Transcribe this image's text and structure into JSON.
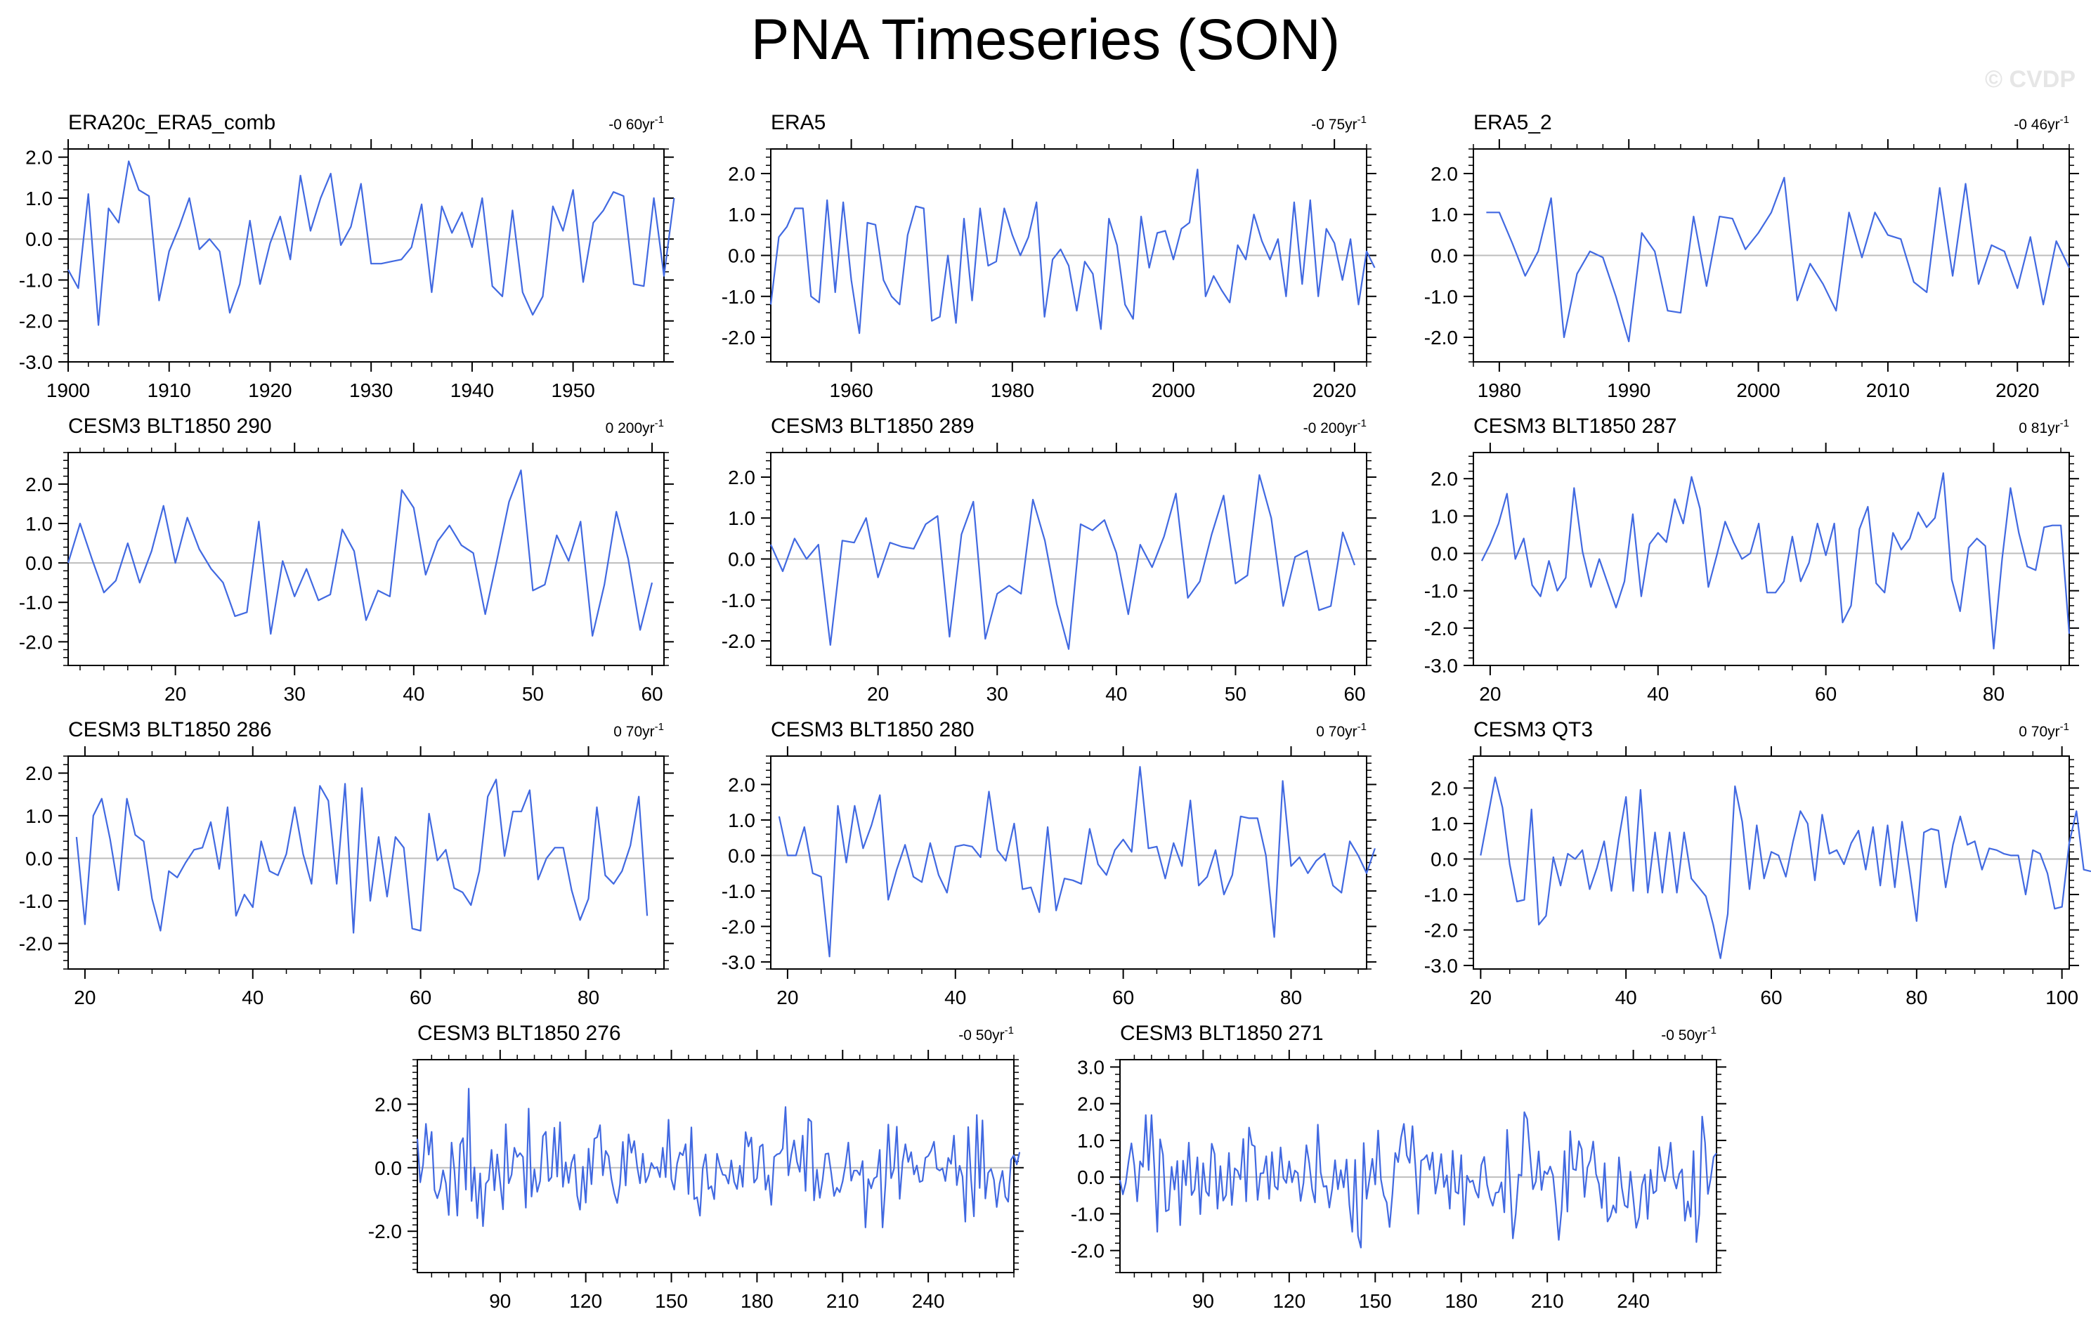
{
  "title": "PNA Timeseries (SON)",
  "watermark": "© CVDP",
  "chart_data": [
    {
      "type": "line",
      "title": "ERA20c_ERA5_comb",
      "trend": "-0 60yr",
      "trend_unit": "-1",
      "xlim": [
        1900,
        1959
      ],
      "ylim": [
        -3,
        2.2
      ],
      "yticks": [
        2,
        1,
        0,
        -1,
        -2,
        -3
      ],
      "xticks": [
        1900,
        1910,
        1920,
        1930,
        1940,
        1950
      ],
      "x0": 1900,
      "line_color": "#4169e1",
      "values": [
        -0.75,
        -1.2,
        1.1,
        -2.1,
        0.75,
        0.4,
        1.9,
        1.2,
        1.05,
        -1.5,
        -0.3,
        0.3,
        1.0,
        -0.25,
        0.0,
        -0.3,
        -1.8,
        -1.1,
        0.45,
        -1.1,
        -0.1,
        0.55,
        -0.5,
        1.55,
        0.2,
        1.0,
        1.6,
        -0.15,
        0.3,
        1.35,
        -0.6,
        -0.6,
        -0.55,
        -0.5,
        -0.2,
        0.85,
        -1.3,
        0.8,
        0.15,
        0.65,
        -0.2,
        1.0,
        -1.15,
        -1.4,
        0.7,
        -1.3,
        -1.85,
        -1.4,
        0.8,
        0.2,
        1.2,
        -1.05,
        0.4,
        0.7,
        1.15,
        1.05,
        -1.1,
        -1.15,
        1.0,
        -0.9,
        1.0
      ]
    },
    {
      "type": "line",
      "title": "ERA5",
      "trend": "-0 75yr",
      "trend_unit": "-1",
      "xlim": [
        1950,
        2024
      ],
      "ylim": [
        -2.6,
        2.6
      ],
      "yticks": [
        2,
        1,
        0,
        -1,
        -2
      ],
      "xticks": [
        1960,
        1980,
        2000,
        2020
      ],
      "x0": 1950,
      "line_color": "#4169e1",
      "values": [
        -1.2,
        0.45,
        0.7,
        1.15,
        1.15,
        -1.0,
        -1.15,
        1.35,
        -0.9,
        1.3,
        -0.6,
        -1.9,
        0.8,
        0.75,
        -0.6,
        -1.0,
        -1.2,
        0.5,
        1.2,
        1.15,
        -1.6,
        -1.5,
        0.0,
        -1.65,
        0.9,
        -1.1,
        1.15,
        -0.25,
        -0.15,
        1.15,
        0.5,
        0.0,
        0.45,
        1.3,
        -1.5,
        -0.1,
        0.15,
        -0.25,
        -1.35,
        -0.15,
        -0.45,
        -1.8,
        0.9,
        0.25,
        -1.2,
        -1.55,
        0.95,
        -0.3,
        0.55,
        0.6,
        -0.1,
        0.65,
        0.8,
        2.1,
        -1.0,
        -0.5,
        -0.85,
        -1.15,
        0.25,
        -0.1,
        1.0,
        0.35,
        -0.1,
        0.4,
        -1.0,
        1.3,
        -0.7,
        1.35,
        -1.0,
        0.65,
        0.3,
        -0.6,
        0.4,
        -1.2,
        0.1,
        -0.3
      ]
    },
    {
      "type": "line",
      "title": "ERA5_2",
      "trend": "-0 46yr",
      "trend_unit": "-1",
      "xlim": [
        1978,
        2024
      ],
      "ylim": [
        -2.6,
        2.6
      ],
      "yticks": [
        2,
        1,
        0,
        -1,
        -2
      ],
      "xticks": [
        1980,
        1990,
        2000,
        2010,
        2020
      ],
      "x0": 1979,
      "line_color": "#4169e1",
      "values": [
        1.05,
        1.05,
        0.3,
        -0.5,
        0.1,
        1.4,
        -2.0,
        -0.45,
        0.1,
        -0.05,
        -1.0,
        -2.1,
        0.55,
        0.1,
        -1.35,
        -1.4,
        0.95,
        -0.75,
        0.95,
        0.9,
        0.15,
        0.55,
        1.05,
        1.9,
        -1.1,
        -0.2,
        -0.7,
        -1.35,
        1.05,
        -0.05,
        1.05,
        0.5,
        0.4,
        -0.65,
        -0.9,
        1.65,
        -0.5,
        1.75,
        -0.7,
        0.25,
        0.1,
        -0.8,
        0.45,
        -1.2,
        0.35,
        -0.3
      ]
    },
    {
      "type": "line",
      "title": "CESM3 BLT1850 290",
      "trend": "0 200yr",
      "trend_unit": "-1",
      "xlim": [
        11,
        61
      ],
      "ylim": [
        -2.6,
        2.8
      ],
      "yticks": [
        2,
        1,
        0,
        -1,
        -2
      ],
      "xticks": [
        20,
        30,
        40,
        50,
        60
      ],
      "x0": 11,
      "line_color": "#4169e1",
      "values": [
        0.0,
        1.0,
        0.1,
        -0.75,
        -0.45,
        0.5,
        -0.5,
        0.3,
        1.45,
        0.0,
        1.15,
        0.35,
        -0.15,
        -0.5,
        -1.35,
        -1.25,
        1.05,
        -1.8,
        0.05,
        -0.85,
        -0.15,
        -0.95,
        -0.8,
        0.85,
        0.3,
        -1.45,
        -0.7,
        -0.85,
        1.85,
        1.4,
        -0.3,
        0.55,
        0.95,
        0.45,
        0.25,
        -1.3,
        0.1,
        1.55,
        2.35,
        -0.7,
        -0.55,
        0.7,
        0.05,
        1.05,
        -1.85,
        -0.55,
        1.3,
        0.1,
        -1.7,
        -0.5
      ]
    },
    {
      "type": "line",
      "title": "CESM3 BLT1850 289",
      "trend": "-0 200yr",
      "trend_unit": "-1",
      "xlim": [
        11,
        61
      ],
      "ylim": [
        -2.6,
        2.6
      ],
      "yticks": [
        2,
        1,
        0,
        -1,
        -2
      ],
      "xticks": [
        20,
        30,
        40,
        50,
        60
      ],
      "x0": 11,
      "line_color": "#4169e1",
      "values": [
        0.35,
        -0.3,
        0.5,
        0.0,
        0.35,
        -2.1,
        0.45,
        0.4,
        1.0,
        -0.45,
        0.4,
        0.3,
        0.25,
        0.85,
        1.05,
        -1.9,
        0.6,
        1.4,
        -1.95,
        -0.85,
        -0.65,
        -0.85,
        1.45,
        0.45,
        -1.1,
        -2.2,
        0.85,
        0.7,
        0.95,
        0.15,
        -1.35,
        0.35,
        -0.2,
        0.55,
        1.6,
        -0.95,
        -0.55,
        0.6,
        1.55,
        -0.6,
        -0.4,
        2.05,
        1.0,
        -1.15,
        0.05,
        0.2,
        -1.25,
        -1.15,
        0.65,
        -0.15
      ]
    },
    {
      "type": "line",
      "title": "CESM3 BLT1850 287",
      "trend": "0 81yr",
      "trend_unit": "-1",
      "xlim": [
        18,
        89
      ],
      "ylim": [
        -3,
        2.7
      ],
      "yticks": [
        2,
        1,
        0,
        -1,
        -2,
        -3
      ],
      "xticks": [
        20,
        40,
        60,
        80
      ],
      "x0": 19,
      "line_color": "#4169e1",
      "values": [
        -0.2,
        0.25,
        0.8,
        1.6,
        -0.15,
        0.4,
        -0.85,
        -1.15,
        -0.2,
        -1.0,
        -0.65,
        1.75,
        0.05,
        -0.9,
        -0.15,
        -0.8,
        -1.45,
        -0.75,
        1.05,
        -1.15,
        0.25,
        0.55,
        0.3,
        1.45,
        0.8,
        2.05,
        1.2,
        -0.9,
        -0.05,
        0.85,
        0.3,
        -0.15,
        0.0,
        0.8,
        -1.05,
        -1.05,
        -0.75,
        0.45,
        -0.75,
        -0.25,
        0.8,
        -0.05,
        0.8,
        -1.85,
        -1.4,
        0.65,
        1.25,
        -0.8,
        -1.05,
        0.55,
        0.1,
        0.4,
        1.1,
        0.7,
        0.95,
        2.15,
        -0.7,
        -1.55,
        0.15,
        0.4,
        0.2,
        -2.55,
        -0.15,
        1.75,
        0.55,
        -0.35,
        -0.45,
        0.7,
        0.75,
        0.75,
        -2.15
      ]
    },
    {
      "type": "line",
      "title": "CESM3 BLT1850 286",
      "trend": "0 70yr",
      "trend_unit": "-1",
      "xlim": [
        18,
        89
      ],
      "ylim": [
        -2.6,
        2.4
      ],
      "yticks": [
        2,
        1,
        0,
        -1,
        -2
      ],
      "xticks": [
        20,
        40,
        60,
        80
      ],
      "x0": 19,
      "line_color": "#4169e1",
      "values": [
        0.5,
        -1.55,
        1.0,
        1.4,
        0.45,
        -0.75,
        1.4,
        0.55,
        0.4,
        -0.95,
        -1.7,
        -0.3,
        -0.45,
        -0.1,
        0.2,
        0.25,
        0.85,
        -0.25,
        1.2,
        -1.35,
        -0.85,
        -1.15,
        0.4,
        -0.3,
        -0.4,
        0.1,
        1.2,
        0.1,
        -0.6,
        1.7,
        1.35,
        -0.6,
        1.75,
        -1.75,
        1.65,
        -1.0,
        0.5,
        -0.9,
        0.5,
        0.25,
        -1.65,
        -1.7,
        1.05,
        -0.05,
        0.2,
        -0.7,
        -0.8,
        -1.1,
        -0.3,
        1.45,
        1.85,
        0.05,
        1.1,
        1.1,
        1.6,
        -0.5,
        0.0,
        0.25,
        0.25,
        -0.75,
        -1.45,
        -0.95,
        1.2,
        -0.4,
        -0.6,
        -0.3,
        0.3,
        1.45,
        -1.35
      ]
    },
    {
      "type": "line",
      "title": "CESM3 BLT1850 280",
      "trend": "0 70yr",
      "trend_unit": "-1",
      "xlim": [
        18,
        89
      ],
      "ylim": [
        -3.2,
        2.8
      ],
      "yticks": [
        2,
        1,
        0,
        -1,
        -2,
        -3
      ],
      "xticks": [
        20,
        40,
        60,
        80
      ],
      "x0": 19,
      "line_color": "#4169e1",
      "values": [
        1.1,
        0.0,
        0.0,
        0.8,
        -0.5,
        -0.6,
        -2.85,
        1.4,
        -0.2,
        1.4,
        0.2,
        0.85,
        1.7,
        -1.25,
        -0.4,
        0.3,
        -0.6,
        -0.75,
        0.35,
        -0.55,
        -1.05,
        0.25,
        0.3,
        0.25,
        -0.05,
        1.8,
        0.15,
        -0.15,
        0.9,
        -0.95,
        -0.9,
        -1.6,
        0.8,
        -1.55,
        -0.65,
        -0.7,
        -0.8,
        0.75,
        -0.25,
        -0.55,
        0.15,
        0.45,
        0.1,
        2.5,
        0.2,
        0.25,
        -0.65,
        0.35,
        -0.3,
        1.55,
        -0.85,
        -0.6,
        0.15,
        -1.1,
        -0.55,
        1.1,
        1.05,
        1.05,
        0.0,
        -2.3,
        2.1,
        -0.3,
        -0.05,
        -0.5,
        -0.15,
        0.05,
        -0.85,
        -1.05,
        0.4,
        0.0,
        -0.5,
        0.2
      ]
    },
    {
      "type": "line",
      "title": "CESM3 QT3",
      "trend": "0 70yr",
      "trend_unit": "-1",
      "xlim": [
        19,
        101
      ],
      "ylim": [
        -3.1,
        2.9
      ],
      "yticks": [
        2,
        1,
        0,
        -1,
        -2,
        -3
      ],
      "xticks": [
        20,
        40,
        60,
        80,
        100
      ],
      "x0": 20,
      "line_color": "#4169e1",
      "values": [
        0.1,
        1.2,
        2.3,
        1.45,
        -0.15,
        -1.2,
        -1.15,
        1.4,
        -1.85,
        -1.6,
        0.05,
        -0.75,
        0.15,
        0.0,
        0.25,
        -0.85,
        -0.25,
        0.5,
        -0.9,
        0.55,
        1.75,
        -0.9,
        1.95,
        -0.95,
        0.75,
        -0.95,
        0.75,
        -0.95,
        0.75,
        -0.55,
        -0.8,
        -1.05,
        -1.85,
        -2.8,
        -1.55,
        2.05,
        1.05,
        -0.85,
        0.95,
        -0.55,
        0.2,
        0.1,
        -0.5,
        0.5,
        1.35,
        1.0,
        -0.6,
        1.25,
        0.15,
        0.25,
        -0.15,
        0.45,
        0.8,
        -0.3,
        0.9,
        -0.75,
        0.95,
        -0.8,
        1.05,
        -0.3,
        -1.75,
        0.75,
        0.85,
        0.8,
        -0.8,
        0.4,
        1.2,
        0.4,
        0.5,
        -0.3,
        0.3,
        0.25,
        0.15,
        0.1,
        0.1,
        -1.0,
        0.25,
        0.15,
        -0.4,
        -1.4,
        -1.35,
        0.45,
        1.35,
        -0.3,
        -0.35
      ]
    },
    {
      "type": "line",
      "title": "CESM3 BLT1850 276",
      "trend": "-0 50yr",
      "trend_unit": "-1",
      "xlim": [
        61,
        270
      ],
      "ylim": [
        -3.3,
        3.4
      ],
      "yticks": [
        2,
        0,
        -2
      ],
      "xticks": [
        90,
        120,
        150,
        180,
        210,
        240
      ],
      "x0": 61,
      "line_color": "#4169e1",
      "values": [
        0.91,
        -0.46,
        0.09,
        1.38,
        0.41,
        1.13,
        -0.7,
        -0.96,
        -0.66,
        -0.08,
        -0.49,
        -1.49,
        0.79,
        -0.1,
        -1.51,
        0.73,
        0.93,
        -0.69,
        2.49,
        -1.05,
        0.01,
        -1.59,
        -0.18,
        -1.84,
        -0.5,
        -0.38,
        0.56,
        -0.71,
        0.42,
        -0.44,
        -1.31,
        1.37,
        -0.49,
        -0.22,
        0.63,
        0.34,
        0.46,
        0.34,
        -1.26,
        1.86,
        -0.91,
        -0.05,
        -0.76,
        -0.42,
        0.99,
        1.13,
        -0.42,
        -0.3,
        1.26,
        -0.28,
        1.43,
        -0.6,
        0.17,
        -0.48,
        0.15,
        0.41,
        -0.88,
        -1.32,
        0.03,
        -1.1,
        0.6,
        -0.52,
        0.91,
        0.96,
        1.34,
        -0.24,
        0.53,
        0.36,
        -0.35,
        -0.81,
        -1.11,
        -0.52,
        0.81,
        -0.56,
        1.05,
        0.47,
        0.84,
        0.04,
        -0.49,
        0.44,
        -0.46,
        -0.25,
        0.15,
        -0.02,
        0.02,
        -0.3,
        0.63,
        -0.3,
        1.51,
        -0.36,
        -0.69,
        0.13,
        0.48,
        0.39,
        0.74,
        -0.83,
        1.27,
        -0.99,
        -0.93,
        -1.51,
        -0.02,
        0.42,
        -0.67,
        -0.58,
        -0.99,
        0.44,
        0.05,
        -0.22,
        -0.24,
        -0.5,
        0.23,
        -0.44,
        -0.67,
        0.06,
        -0.6,
        1.12,
        0.67,
        0.95,
        -0.47,
        -0.33,
        0.66,
        0.73,
        -0.69,
        -0.24,
        -1.17,
        0.34,
        0.42,
        0.45,
        0.6,
        1.91,
        -0.24,
        0.4,
        0.86,
        0.19,
        -0.13,
        1.01,
        -0.73,
        1.54,
        1.45,
        -1.03,
        -0.06,
        -0.95,
        -0.38,
        0.43,
        0.45,
        -0.16,
        -0.89,
        -0.63,
        -0.77,
        -0.43,
        0.08,
        0.79,
        -0.41,
        -0.09,
        -0.09,
        -0.23,
        0.21,
        -1.88,
        -0.36,
        -0.65,
        -0.34,
        -0.28,
        0.56,
        -1.88,
        -0.53,
        1.36,
        -0.33,
        -0.03,
        1.29,
        -0.98,
        0.18,
        0.74,
        0.18,
        0.49,
        -0.21,
        0.07,
        -0.45,
        -0.41,
        0.31,
        0.37,
        0.54,
        0.82,
        -0.03,
        -0.09,
        -0.02,
        -0.42,
        0.31,
        0.12,
        1.01,
        -0.55,
        0.06,
        -0.28,
        -1.7,
        1.28,
        -0.37,
        -1.53,
        1.66,
        -0.64,
        1.49,
        -0.97,
        -0.16,
        -0.04,
        -0.38,
        -1.24,
        -0.5,
        -0.1,
        -0.91,
        -1.07,
        0.25,
        0.39,
        0.1,
        0.49
      ]
    },
    {
      "type": "line",
      "title": "CESM3 BLT1850 271",
      "trend": "-0 50yr",
      "trend_unit": "-1",
      "xlim": [
        61,
        269
      ],
      "ylim": [
        -2.6,
        3.2
      ],
      "yticks": [
        3,
        2,
        1,
        0,
        -1,
        -2
      ],
      "xticks": [
        90,
        120,
        150,
        180,
        210,
        240
      ],
      "x0": 61,
      "line_color": "#4169e1",
      "values": [
        -0.08,
        -0.47,
        -0.16,
        0.42,
        0.92,
        0.32,
        -0.66,
        0.43,
        0.28,
        1.69,
        0.19,
        1.69,
        0.23,
        -1.49,
        1.03,
        0.61,
        -0.93,
        -0.89,
        0.28,
        -0.34,
        0.44,
        -1.31,
        0.45,
        -0.22,
        0.94,
        -0.49,
        -0.34,
        0.54,
        -1.01,
        0.38,
        -0.39,
        -0.51,
        0.91,
        0.63,
        -0.86,
        0.3,
        -0.64,
        -0.49,
        0.66,
        -0.76,
        0.24,
        0.17,
        -0.06,
        1.04,
        -0.66,
        1.35,
        0.88,
        0.84,
        -0.62,
        0.1,
        0.11,
        0.57,
        -0.59,
        0.68,
        -0.25,
        -0.34,
        0.81,
        -0.03,
        -0.16,
        0.43,
        -0.14,
        0.18,
        0.11,
        -0.65,
        -0.16,
        0.87,
        0.38,
        -0.33,
        -0.69,
        1.43,
        0.12,
        -0.26,
        -0.24,
        -0.83,
        -0.32,
        0.46,
        -0.33,
        0.19,
        -0.28,
        0.48,
        -0.75,
        -1.49,
        0.47,
        -1.6,
        -1.92,
        0.93,
        -0.59,
        -0.05,
        0.5,
        -0.2,
        1.27,
        -0.06,
        -0.5,
        -0.69,
        -1.36,
        -0.45,
        0.66,
        0.41,
        1.08,
        1.45,
        0.59,
        0.39,
        1.39,
        0.32,
        -1.0,
        0.45,
        0.5,
        0.6,
        0.2,
        0.67,
        -0.45,
        0.01,
        0.63,
        -0.27,
        0.05,
        -0.86,
        0.72,
        -0.4,
        -0.45,
        0.6,
        -1.3,
        0.04,
        -0.14,
        -0.09,
        -0.38,
        -0.56,
        0.33,
        0.55,
        -0.21,
        -0.56,
        -0.78,
        -0.43,
        -0.41,
        -0.14,
        -0.96,
        1.29,
        -0.11,
        -1.67,
        -1.0,
        0.07,
        0.04,
        1.77,
        1.58,
        0.61,
        -0.33,
        -0.12,
        0.7,
        -0.35,
        0.16,
        0.08,
        0.29,
        0.05,
        -0.76,
        -1.71,
        -0.88,
        0.71,
        -0.94,
        1.25,
        0.22,
        0.19,
        0.98,
        0.76,
        -0.54,
        0.26,
        0.46,
        0.97,
        0.08,
        -0.18,
        -0.84,
        0.38,
        -1.21,
        -1.07,
        -0.77,
        -0.97,
        0.54,
        -0.29,
        -0.77,
        -0.83,
        0.15,
        -0.59,
        -1.38,
        -1.09,
        -0.22,
        0.07,
        -1.14,
        0.2,
        -0.44,
        -0.37,
        0.82,
        0.21,
        -0.11,
        0.33,
        0.94,
        -0.03,
        -0.31,
        0.08,
        0.21,
        -1.19,
        -0.66,
        -1.08,
        0.71,
        -1.77,
        -1.01,
        1.65,
        0.94,
        -0.46,
        -0.03,
        0.55,
        0.65
      ]
    }
  ]
}
